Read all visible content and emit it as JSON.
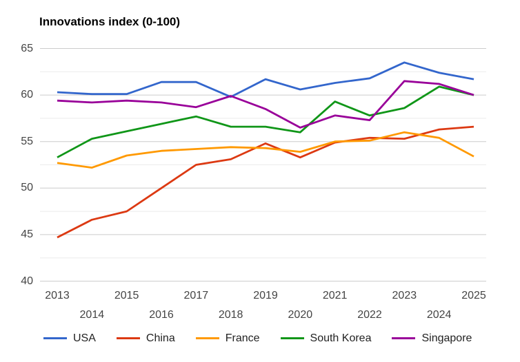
{
  "chart_data": {
    "type": "line",
    "title": "Innovations index (0-100)",
    "xlabel": "",
    "ylabel": "",
    "x": [
      2013,
      2014,
      2015,
      2016,
      2017,
      2018,
      2019,
      2020,
      2021,
      2022,
      2023,
      2024,
      2025
    ],
    "xticks": [
      "2013",
      "2014",
      "2015",
      "2016",
      "2017",
      "2018",
      "2019",
      "2020",
      "2021",
      "2022",
      "2023",
      "2024",
      "2025"
    ],
    "yticks_major": [
      65,
      60,
      55,
      50,
      45,
      40
    ],
    "yticks_minor": [
      62.5,
      57.5,
      52.5,
      47.5,
      42.5
    ],
    "ylim": [
      40,
      65
    ],
    "grid": true,
    "legend_position": "bottom",
    "colors": {
      "grid_major": "#cccccc",
      "grid_minor": "#ebebeb",
      "tick_text": "#444444",
      "legend_text": "#222222",
      "title_text": "#000000",
      "background": "#ffffff"
    },
    "series": [
      {
        "name": "USA",
        "color": "#3366CC",
        "values": [
          60.3,
          60.1,
          60.1,
          61.4,
          61.4,
          59.8,
          61.7,
          60.6,
          61.3,
          61.8,
          63.5,
          62.4,
          61.7
        ]
      },
      {
        "name": "China",
        "color": "#DC3912",
        "values": [
          44.7,
          46.6,
          47.5,
          50.0,
          52.5,
          53.1,
          54.8,
          53.3,
          54.9,
          55.4,
          55.3,
          56.3,
          56.6
        ]
      },
      {
        "name": "France",
        "color": "#FF9900",
        "values": [
          52.7,
          52.2,
          53.5,
          54.0,
          54.2,
          54.4,
          54.3,
          53.9,
          55.0,
          55.1,
          56.0,
          55.4,
          53.4
        ]
      },
      {
        "name": "South Korea",
        "color": "#109618",
        "values": [
          53.3,
          55.3,
          56.1,
          56.9,
          57.7,
          56.6,
          56.6,
          56.0,
          59.3,
          57.8,
          58.6,
          60.9,
          60.0
        ]
      },
      {
        "name": "Singapore",
        "color": "#990099",
        "values": [
          59.4,
          59.2,
          59.4,
          59.2,
          58.7,
          59.9,
          58.5,
          56.5,
          57.8,
          57.3,
          61.5,
          61.2,
          60.0
        ]
      }
    ]
  }
}
